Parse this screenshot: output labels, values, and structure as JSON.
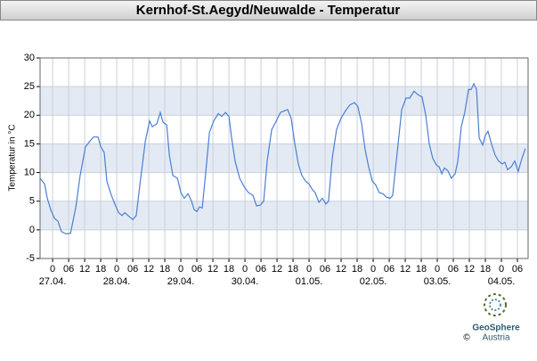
{
  "chart_data": {
    "type": "line",
    "title": "Kernhof-St.Aegyd/Neuwalde - Temperatur",
    "y_label": "Temperatur in °C",
    "x": [
      -4.7,
      -3,
      -2,
      -0.7,
      0.7,
      2,
      3.3,
      5,
      6.7,
      8.7,
      10.3,
      12.3,
      14,
      15.3,
      17,
      18,
      19.3,
      20.3,
      22,
      23.3,
      24.7,
      26,
      27,
      28.7,
      30,
      31.3,
      32.7,
      34.7,
      36.3,
      37.3,
      39,
      40.3,
      41.3,
      42.7,
      43.7,
      45,
      46.7,
      48,
      49.3,
      50.7,
      52,
      53,
      54,
      55,
      56,
      57.3,
      58.7,
      60.3,
      62,
      63.3,
      64.7,
      66,
      67,
      68.3,
      70,
      71.7,
      73.3,
      75,
      76.3,
      77.7,
      79,
      80.3,
      82,
      83.7,
      85.3,
      87,
      88,
      89.3,
      90.7,
      92,
      93.3,
      94.7,
      96,
      97.3,
      98.3,
      99.7,
      101,
      102.3,
      103.3,
      104.7,
      106.3,
      108,
      109.7,
      111.3,
      113,
      114.3,
      115.7,
      117,
      118.3,
      119.7,
      121,
      122.3,
      123.7,
      125,
      126.3,
      127.3,
      129,
      130.7,
      132.3,
      133.7,
      135.3,
      137,
      138.3,
      139.7,
      141,
      142.3,
      143.7,
      144.7,
      145.7,
      146.7,
      148,
      149.3,
      150.7,
      151.7,
      153,
      154.3,
      155.7,
      156.7,
      157.7,
      158.7,
      159.7,
      161,
      162,
      163,
      164.3,
      165.7,
      167,
      168.3,
      169.3,
      170.3,
      171.7,
      173,
      174.3,
      175.7,
      177
    ],
    "series": [
      {
        "color": "#4a7fd4",
        "values": [
          9,
          8,
          5.5,
          3.5,
          2,
          1.5,
          -0.3,
          -0.7,
          -0.6,
          4,
          9.5,
          14.5,
          15.5,
          16.2,
          16.2,
          14.5,
          13.5,
          8.5,
          6,
          4.5,
          3,
          2.5,
          3,
          2.3,
          1.8,
          2.5,
          8,
          15.5,
          19,
          18,
          18.5,
          20.5,
          18.8,
          18.3,
          13,
          9.5,
          9,
          6.5,
          5.5,
          6.3,
          5,
          3.5,
          3.2,
          4,
          3.8,
          10,
          17,
          19,
          20.3,
          19.8,
          20.5,
          19.8,
          16,
          12,
          9,
          7.5,
          6.5,
          6,
          4.2,
          4.3,
          5,
          12,
          17.5,
          19,
          20.5,
          20.8,
          21,
          19.5,
          15,
          11.5,
          9.5,
          8.5,
          8,
          7,
          6.5,
          4.8,
          5.5,
          4.5,
          5,
          12.5,
          17.5,
          19.5,
          20.8,
          21.8,
          22.2,
          21.5,
          18.5,
          14,
          11,
          8.5,
          7.8,
          6.5,
          6.3,
          5.7,
          5.5,
          6,
          13.5,
          21,
          23,
          23,
          24.2,
          23.5,
          23.2,
          20,
          15,
          12.5,
          11.3,
          11,
          9.8,
          10.8,
          10.3,
          9,
          9.8,
          12,
          18,
          20.5,
          24.5,
          24.5,
          25.5,
          24.5,
          16,
          14.8,
          16.5,
          17.2,
          15,
          13,
          12,
          11.5,
          11.8,
          10.5,
          11,
          12,
          10.2,
          12.5,
          14.2
        ]
      }
    ],
    "xlim": [
      -4.7,
      178
    ],
    "ylim": [
      -5,
      30
    ],
    "yticks": [
      -5,
      0,
      5,
      10,
      15,
      20,
      25,
      30
    ],
    "xticks": [
      0,
      {
        "value": 6,
        "label": "06"
      },
      12,
      18,
      {
        "value": 24,
        "label": "0"
      },
      {
        "value": 30,
        "label": "06"
      },
      {
        "value": 36,
        "label": "12"
      },
      {
        "value": 42,
        "label": "18"
      },
      {
        "value": 48,
        "label": "0"
      },
      {
        "value": 54,
        "label": "06"
      },
      {
        "value": 60,
        "label": "12"
      },
      {
        "value": 66,
        "label": "18"
      },
      {
        "value": 72,
        "label": "0"
      },
      {
        "value": 78,
        "label": "06"
      },
      {
        "value": 84,
        "label": "12"
      },
      {
        "value": 90,
        "label": "18"
      },
      {
        "value": 96,
        "label": "0"
      },
      {
        "value": 102,
        "label": "06"
      },
      {
        "value": 108,
        "label": "12"
      },
      {
        "value": 114,
        "label": "18"
      },
      {
        "value": 120,
        "label": "0"
      },
      {
        "value": 126,
        "label": "06"
      },
      {
        "value": 132,
        "label": "12"
      },
      {
        "value": 138,
        "label": "18"
      },
      {
        "value": 144,
        "label": "0"
      },
      {
        "value": 150,
        "label": "06"
      },
      {
        "value": 156,
        "label": "12"
      },
      {
        "value": 162,
        "label": "18"
      },
      {
        "value": 168,
        "label": "0"
      },
      {
        "value": 174,
        "label": "06"
      }
    ],
    "date_labels": [
      {
        "value": 0,
        "label": "27.04."
      },
      {
        "value": 24,
        "label": "28.04."
      },
      {
        "value": 48,
        "label": "29.04."
      },
      {
        "value": 72,
        "label": "30.04."
      },
      {
        "value": 96,
        "label": "01.05."
      },
      {
        "value": 120,
        "label": "02.05."
      },
      {
        "value": 144,
        "label": "03.05."
      },
      {
        "value": 168,
        "label": "04.05."
      }
    ],
    "grid": true
  },
  "logo": {
    "name": "GeoSphere",
    "country": "Austria",
    "copyright": "©"
  }
}
